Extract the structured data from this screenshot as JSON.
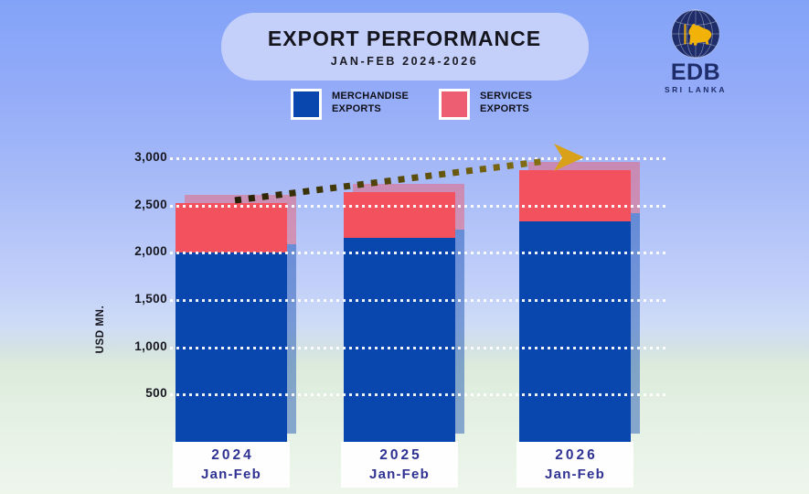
{
  "header": {
    "title": "EXPORT PERFORMANCE",
    "subtitle": "JAN-FEB 2024-2026"
  },
  "logo": {
    "org": "EDB",
    "country": "SRI LANKA"
  },
  "legend": {
    "items": [
      {
        "label": "MERCHANDISE\nEXPORTS",
        "color": "#0946ad"
      },
      {
        "label": "SERVICES\nEXPORTS",
        "color": "#ee5e72"
      }
    ]
  },
  "chart_data": {
    "type": "bar",
    "stacked": true,
    "title": "EXPORT PERFORMANCE",
    "subtitle": "JAN-FEB 2024-2026",
    "ylabel": "USD MN.",
    "ylim": [
      0,
      3000
    ],
    "yticks": [
      500,
      1000,
      1500,
      2000,
      2500,
      3000
    ],
    "grid": "white-dotted-horizontal",
    "legend_position": "top",
    "categories": [
      {
        "year": "2024",
        "period": "Jan-Feb"
      },
      {
        "year": "2025",
        "period": "Jan-Feb"
      },
      {
        "year": "2026",
        "period": "Jan-Feb"
      }
    ],
    "series": [
      {
        "name": "MERCHANDISE EXPORTS",
        "color": "#0946ad",
        "values": [
          2000,
          2160,
          2330
        ]
      },
      {
        "name": "SERVICES EXPORTS",
        "color": "#f4515f",
        "values": [
          525,
          485,
          545
        ]
      }
    ],
    "totals": [
      2525,
      2645,
      2875
    ],
    "annotations": [
      {
        "type": "trend-arrow",
        "direction": "up",
        "color": "#d9a019"
      }
    ]
  }
}
